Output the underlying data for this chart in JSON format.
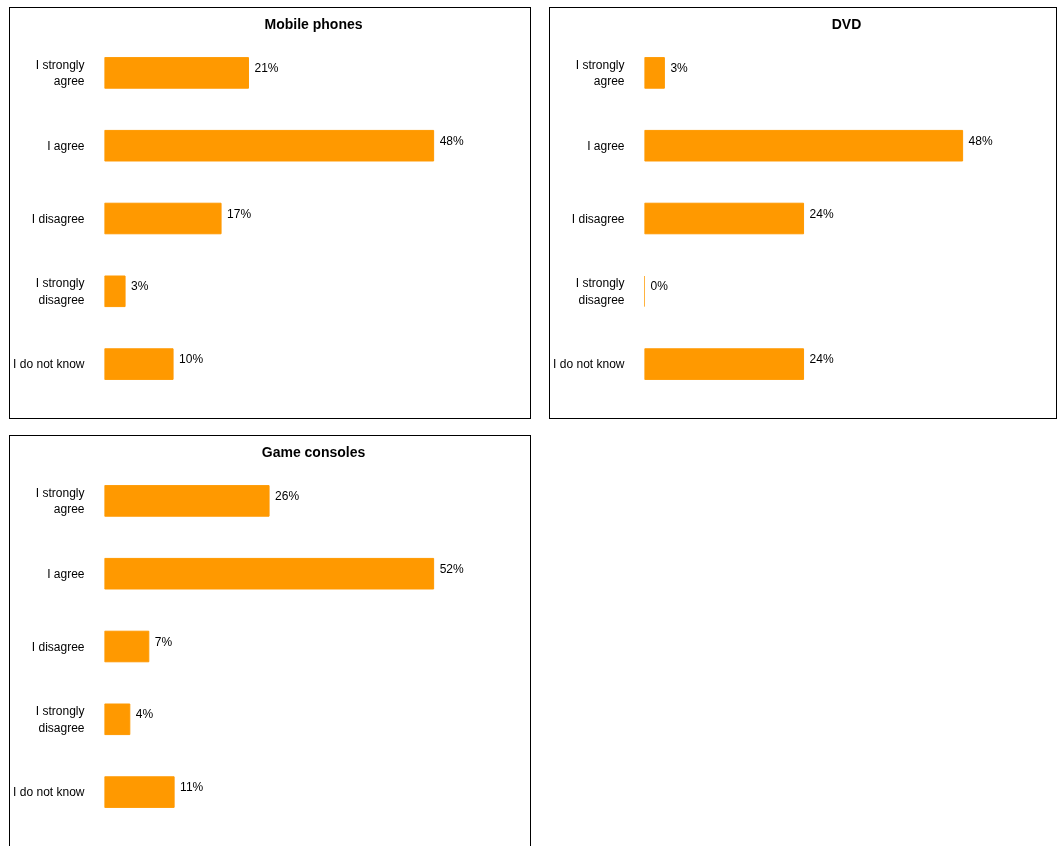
{
  "chart_data": [
    {
      "type": "bar",
      "orientation": "horizontal",
      "title": "Mobile phones",
      "categories": [
        "I strongly agree",
        "I agree",
        "I disagree",
        "I strongly disagree",
        "I do not know"
      ],
      "values": [
        21,
        48,
        17,
        3,
        10
      ],
      "value_labels": [
        "21%",
        "48%",
        "17%",
        "3%",
        "10%"
      ],
      "color": "#ff9900",
      "tick_labels": "y"
    },
    {
      "type": "bar",
      "orientation": "horizontal",
      "title": "DVD",
      "categories": [
        "I strongly agree",
        "I agree",
        "I disagree",
        "I strongly disagree",
        "I do not know"
      ],
      "values": [
        3,
        48,
        24,
        0,
        24
      ],
      "value_labels": [
        "3%",
        "48%",
        "24%",
        "0%",
        "24%"
      ],
      "color": "#ff9900",
      "tick_labels": "y"
    },
    {
      "type": "bar",
      "orientation": "horizontal",
      "title": "Game consoles",
      "categories": [
        "I strongly agree",
        "I agree",
        "I disagree",
        "I strongly disagree",
        "I do not know"
      ],
      "values": [
        26,
        52,
        7,
        4,
        11
      ],
      "value_labels": [
        "26%",
        "52%",
        "7%",
        "4%",
        "11%"
      ],
      "color": "#ff9900",
      "tick_labels": "y"
    }
  ]
}
